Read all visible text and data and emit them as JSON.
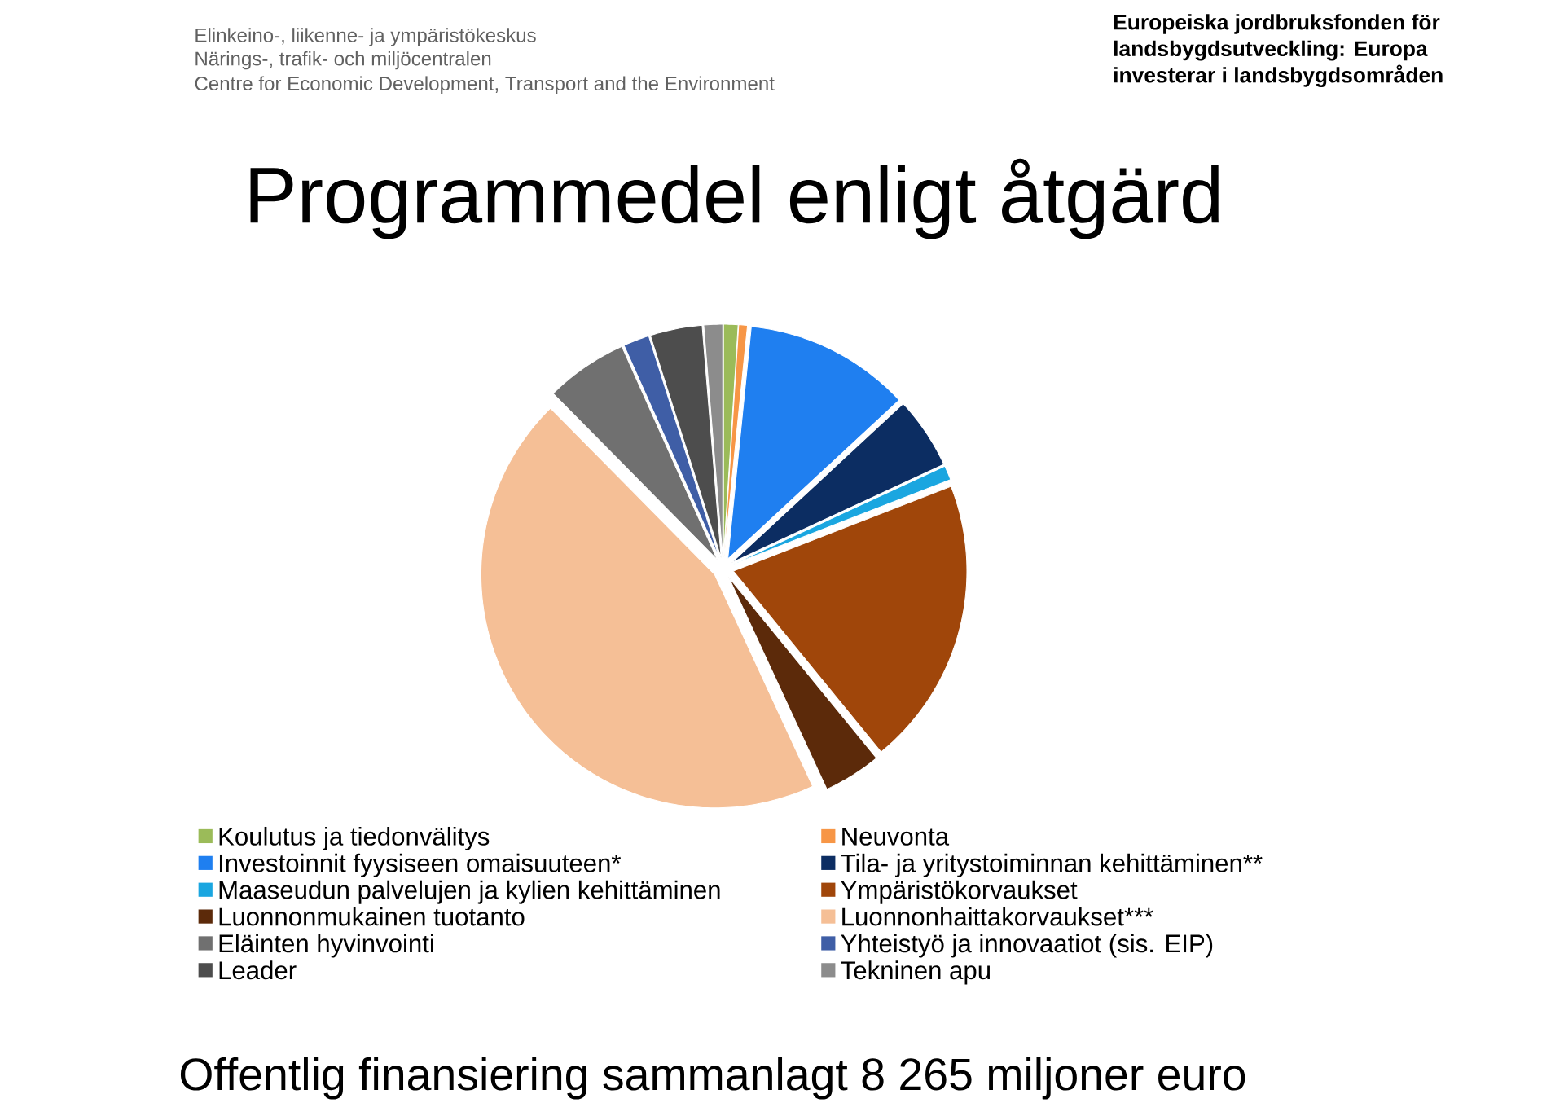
{
  "chart_data": {
    "type": "pie",
    "title": "Programmedel enligt åtgärd",
    "categories": [
      "Koulutus ja tiedonvälitys",
      "Neuvonta",
      "Investoinnit fyysiseen omaisuuteen*",
      "Tila- ja yritystoiminnan kehittäminen**",
      "Maaseudun palvelujen ja kylien kehittäminen",
      "Ympäristökorvaukset",
      "Luonnonmukainen tuotanto",
      "Luonnonhaittakorvaukset***",
      "Eläinten hyvinvointi",
      "Yhteistyö ja innovaatiot (sis. EIP)",
      "Leader",
      "Tekninen apu"
    ],
    "values": [
      1.0,
      0.6,
      11.5,
      5.0,
      1.0,
      20.0,
      4.0,
      44.5,
      5.7,
      1.8,
      3.6,
      1.3
    ],
    "colors": [
      "#9bbb59",
      "#f79646",
      "#1f7ff0",
      "#0c2d62",
      "#1aa6e0",
      "#a0460a",
      "#5c2a0a",
      "#f5bf96",
      "#707070",
      "#3f5ea6",
      "#4d4d4d",
      "#8c8c8c"
    ],
    "legend": "bottom",
    "annotations": [
      "Elinkeino-, liikenne- ja ympäristökeskus",
      "Närings-, trafik- och miljöcentralen",
      "Centre for Economic Development, Transport and the Environment",
      "Europeiska jordbruksfonden för",
      "landsbygdsutveckling: Europa",
      "investerar i landsbygdsområden",
      "Offentlig finansiering sammanlagt 8 265 miljoner euro"
    ]
  }
}
